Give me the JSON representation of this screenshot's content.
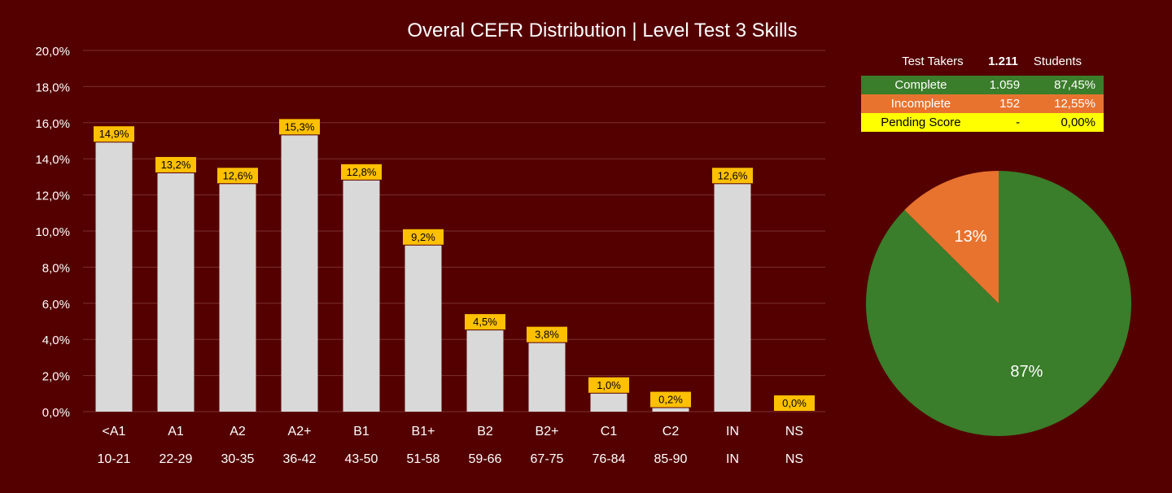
{
  "colors": {
    "background": "#540000",
    "bar": "#d9d9d9",
    "label_bg": "#ffc000",
    "grid": "#7a3030",
    "complete": "#3a7d2a",
    "incomplete": "#e8732f",
    "pending": "#ffff00"
  },
  "summary": {
    "header": {
      "label": "Test Takers",
      "value": "1.211",
      "unit": "Students"
    },
    "rows": [
      {
        "label": "Complete",
        "count": "1.059",
        "pct": "87,45%"
      },
      {
        "label": "Incomplete",
        "count": "152",
        "pct": "12,55%"
      },
      {
        "label": "Pending Score",
        "count": "-",
        "pct": "0,00%"
      }
    ]
  },
  "chart_data": [
    {
      "type": "bar",
      "title": "Overal CEFR Distribution | Level Test 3 Skills",
      "categories": [
        "<A1",
        "A1",
        "A2",
        "A2+",
        "B1",
        "B1+",
        "B2",
        "B2+",
        "C1",
        "C2",
        "IN",
        "NS"
      ],
      "ranges": [
        "10-21",
        "22-29",
        "30-35",
        "36-42",
        "43-50",
        "51-58",
        "59-66",
        "67-75",
        "76-84",
        "85-90",
        "IN",
        "NS"
      ],
      "values": [
        14.9,
        13.2,
        12.6,
        15.3,
        12.8,
        9.2,
        4.5,
        3.8,
        1.0,
        0.2,
        12.6,
        0.0
      ],
      "data_labels": [
        "14,9%",
        "13,2%",
        "12,6%",
        "15,3%",
        "12,8%",
        "9,2%",
        "4,5%",
        "3,8%",
        "1,0%",
        "0,2%",
        "12,6%",
        "0,0%"
      ],
      "ylim": [
        0,
        20
      ],
      "yticks": [
        "0,0%",
        "2,0%",
        "4,0%",
        "6,0%",
        "8,0%",
        "10,0%",
        "12,0%",
        "14,0%",
        "16,0%",
        "18,0%",
        "20,0%"
      ],
      "grid": true
    },
    {
      "type": "pie",
      "slices": [
        {
          "label": "Complete",
          "value": 87.45,
          "text": "87%"
        },
        {
          "label": "Incomplete",
          "value": 12.55,
          "text": "13%"
        }
      ]
    }
  ]
}
